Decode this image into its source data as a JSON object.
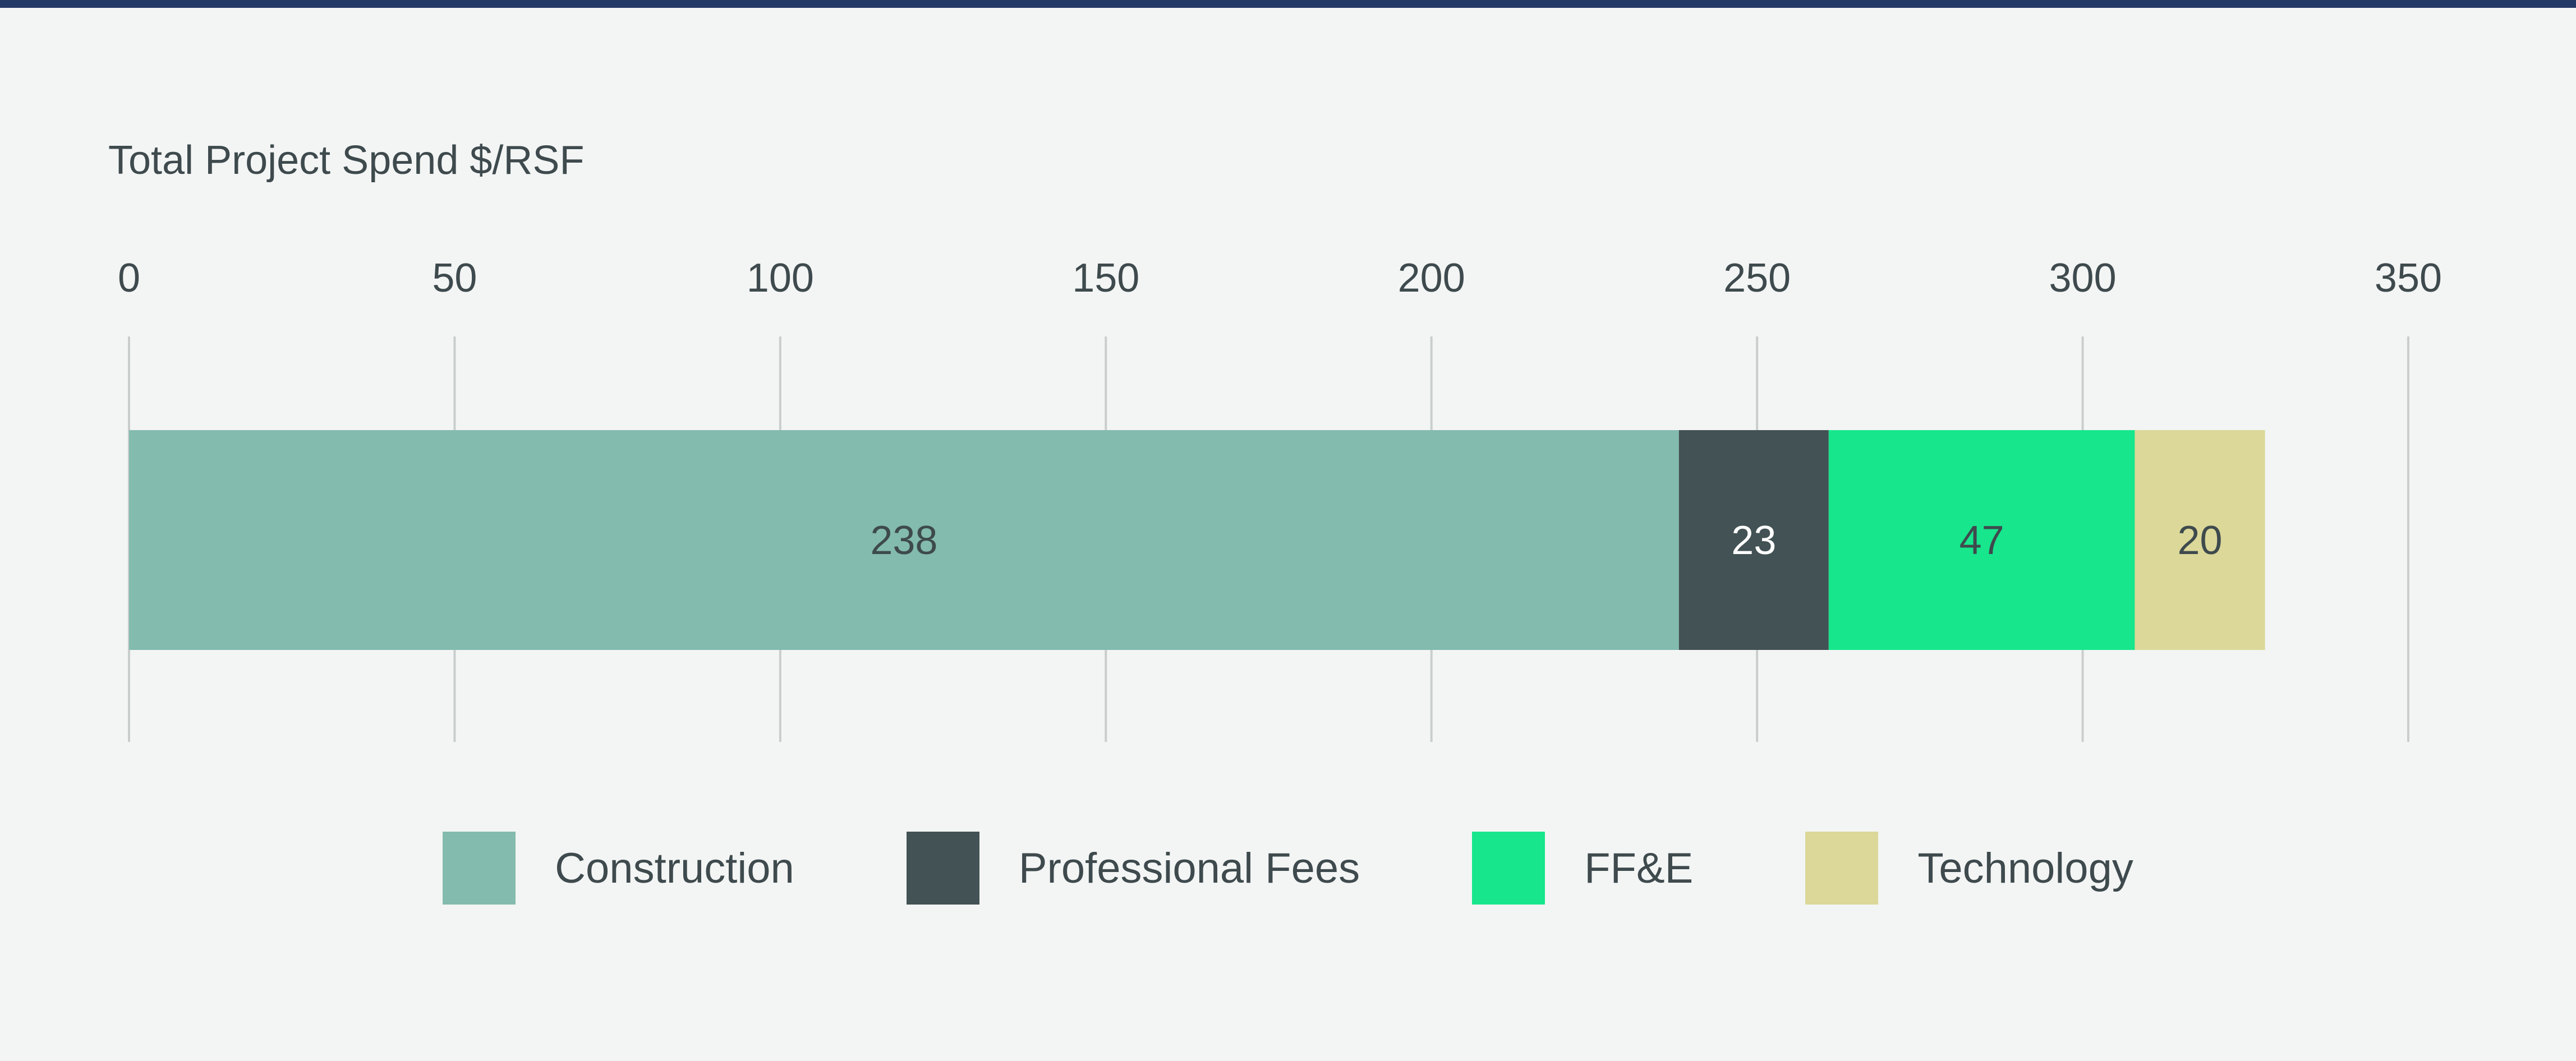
{
  "chart_data": {
    "type": "bar",
    "orientation": "horizontal",
    "stacked": true,
    "title": "Total Project Spend $/RSF",
    "xlim": [
      0,
      350
    ],
    "xticks": [
      "0",
      "50",
      "100",
      "150",
      "200",
      "250",
      "300",
      "350"
    ],
    "tick_values": [
      0,
      50,
      100,
      150,
      200,
      250,
      300,
      350
    ],
    "grid": true,
    "legend_position": "bottom-center",
    "series": [
      {
        "name": "Construction",
        "value": 238,
        "label": "238",
        "color": "#83bbae",
        "label_color": "#3e4a4d"
      },
      {
        "name": "Professional Fees",
        "value": 23,
        "label": "23",
        "color": "#435254",
        "label_color": "#ffffff"
      },
      {
        "name": "FF&E",
        "value": 47,
        "label": "47",
        "color": "#17e68c",
        "label_color": "#3e4a4d"
      },
      {
        "name": "Technology",
        "value": 20,
        "label": "20",
        "color": "#dbd899",
        "label_color": "#3e4a4d"
      }
    ]
  }
}
